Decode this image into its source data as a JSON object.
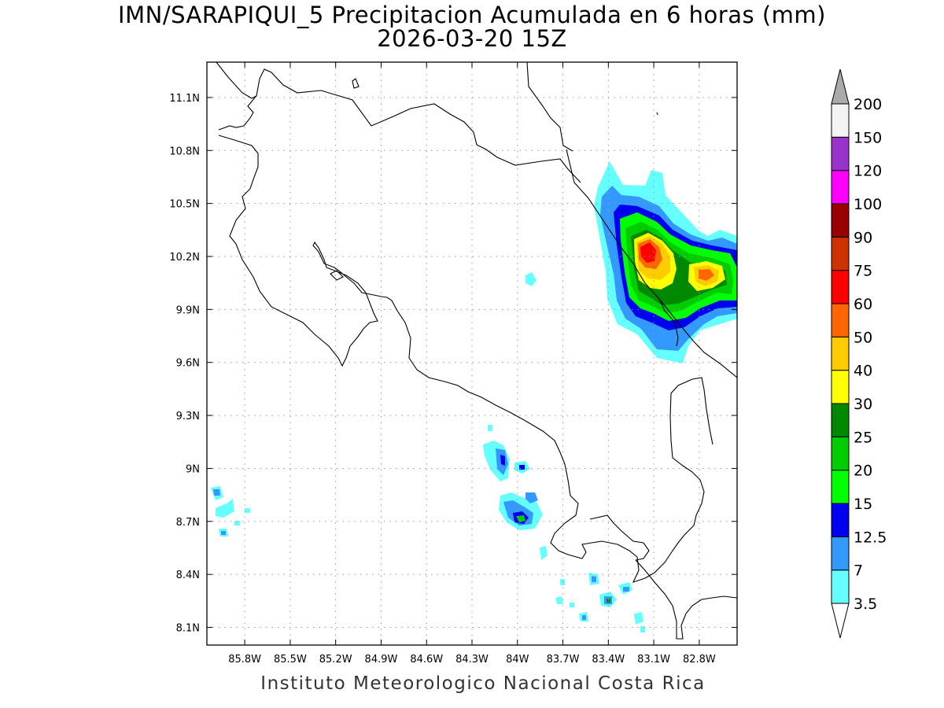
{
  "title": {
    "line1": "IMN/SARAPIQUI_5 Precipitacion Acumulada en 6 horas (mm)",
    "line2": "2026-03-20 15Z"
  },
  "credit": "Instituto Meteorologico Nacional Costa Rica",
  "map": {
    "lon_range": [
      -86.05,
      -82.55
    ],
    "lat_range": [
      8.0,
      11.3
    ],
    "lon_ticks": [
      {
        "value": -85.8,
        "label": "85.8W"
      },
      {
        "value": -85.5,
        "label": "85.5W"
      },
      {
        "value": -85.2,
        "label": "85.2W"
      },
      {
        "value": -84.9,
        "label": "84.9W"
      },
      {
        "value": -84.6,
        "label": "84.6W"
      },
      {
        "value": -84.3,
        "label": "84.3W"
      },
      {
        "value": -84.0,
        "label": "84W"
      },
      {
        "value": -83.7,
        "label": "83.7W"
      },
      {
        "value": -83.4,
        "label": "83.4W"
      },
      {
        "value": -83.1,
        "label": "83.1W"
      },
      {
        "value": -82.8,
        "label": "82.8W"
      }
    ],
    "lat_ticks": [
      {
        "value": 11.1,
        "label": "11.1N"
      },
      {
        "value": 10.8,
        "label": "10.8N"
      },
      {
        "value": 10.5,
        "label": "10.5N"
      },
      {
        "value": 10.2,
        "label": "10.2N"
      },
      {
        "value": 9.9,
        "label": "9.9N"
      },
      {
        "value": 9.6,
        "label": "9.6N"
      },
      {
        "value": 9.3,
        "label": "9.3N"
      },
      {
        "value": 9.0,
        "label": "9N"
      },
      {
        "value": 8.7,
        "label": "8.7N"
      },
      {
        "value": 8.4,
        "label": "8.4N"
      },
      {
        "value": 8.1,
        "label": "8.1N"
      }
    ],
    "grid": true
  },
  "colorbar": {
    "levels": [
      {
        "label": "3.5",
        "color": "#66ffff"
      },
      {
        "label": "7",
        "color": "#3399ff"
      },
      {
        "label": "12.5",
        "color": "#0000ee"
      },
      {
        "label": "15",
        "color": "#00ff00"
      },
      {
        "label": "20",
        "color": "#00cc00"
      },
      {
        "label": "25",
        "color": "#008800"
      },
      {
        "label": "30",
        "color": "#ffff00"
      },
      {
        "label": "40",
        "color": "#ffcc00"
      },
      {
        "label": "50",
        "color": "#ff6600"
      },
      {
        "label": "60",
        "color": "#ff0000"
      },
      {
        "label": "75",
        "color": "#cc3300"
      },
      {
        "label": "90",
        "color": "#990000"
      },
      {
        "label": "100",
        "color": "#ff00ff"
      },
      {
        "label": "120",
        "color": "#9933cc"
      },
      {
        "label": "150",
        "color": "#f4f4f4"
      },
      {
        "label": "200",
        "color": "#aaaaaa"
      }
    ],
    "under_color": "#ffffff",
    "over_color": "#aaaaaa"
  }
}
